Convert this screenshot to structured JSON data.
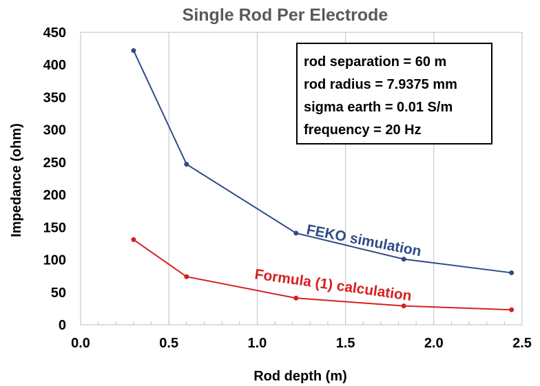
{
  "chart_data": {
    "type": "line",
    "title": "Single Rod Per Electrode",
    "xlabel": "Rod depth (m)",
    "ylabel": "Impedance (ohm)",
    "xlim": [
      0.0,
      2.5
    ],
    "ylim": [
      0,
      450
    ],
    "x_ticks": [
      "0.0",
      "0.5",
      "1.0",
      "1.5",
      "2.0",
      "2.5"
    ],
    "y_ticks": [
      "0",
      "50",
      "100",
      "150",
      "200",
      "250",
      "300",
      "350",
      "400",
      "450"
    ],
    "grid": "vertical",
    "x": [
      0.3,
      0.6,
      1.22,
      1.83,
      2.44
    ],
    "series": [
      {
        "name": "FEKO simulation",
        "color": "#2e4a87",
        "values": [
          422,
          247,
          141,
          101,
          80
        ]
      },
      {
        "name": "Formula (1) calculation",
        "color": "#d61f1f",
        "values": [
          131,
          74,
          41,
          29,
          23
        ]
      }
    ],
    "annotation_box": [
      "rod separation = 60 m",
      "rod radius = 7.9375 mm",
      "sigma earth = 0.01 S/m",
      "frequency = 20 Hz"
    ]
  }
}
